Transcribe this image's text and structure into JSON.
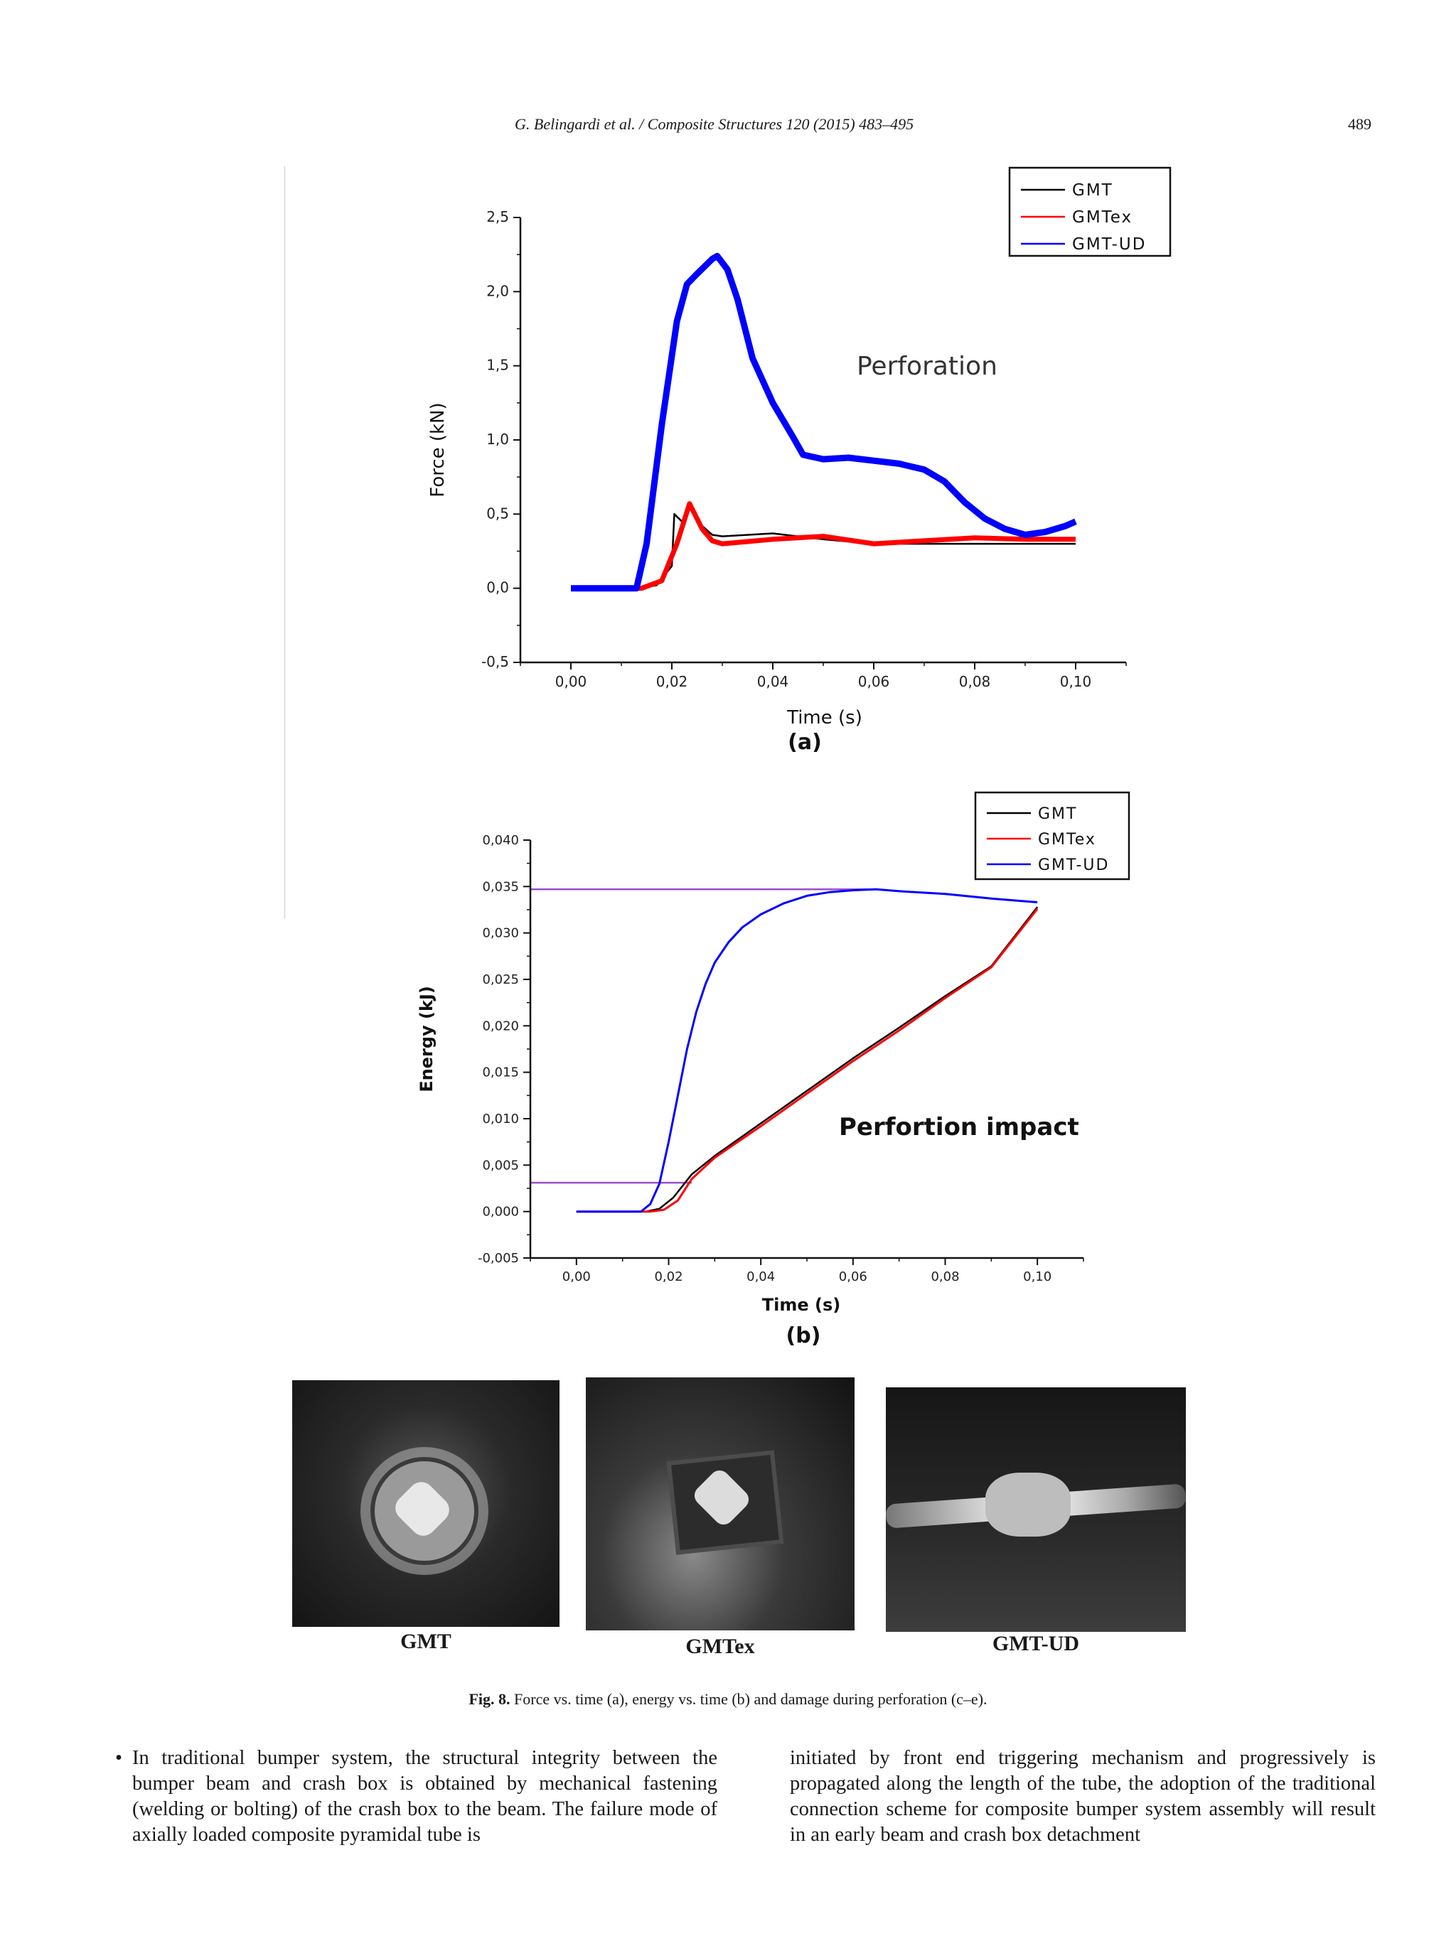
{
  "header": {
    "citation": "G. Belingardi et al. / Composite Structures 120 (2015) 483–495",
    "page_number": "489"
  },
  "chart_data": [
    {
      "type": "line",
      "panel": "(a)",
      "title": "Perforation",
      "xlabel": "Time (s)",
      "ylabel": "Force (kN)",
      "xlim": [
        -0.01,
        0.11
      ],
      "ylim": [
        -0.5,
        2.5
      ],
      "xticks": [
        "0,00",
        "0,02",
        "0,04",
        "0,06",
        "0,08",
        "0,10"
      ],
      "xtick_values": [
        0.0,
        0.02,
        0.04,
        0.06,
        0.08,
        0.1
      ],
      "yticks": [
        "-0,5",
        "0,0",
        "0,5",
        "1,0",
        "1,5",
        "2,0",
        "2,5"
      ],
      "ytick_values": [
        -0.5,
        0.0,
        0.5,
        1.0,
        1.5,
        2.0,
        2.5
      ],
      "legend": [
        "GMT",
        "GMTex",
        "GMT-UD"
      ],
      "legend_position": "top-right",
      "series": [
        {
          "name": "GMT",
          "color": "#000000",
          "x": [
            0.0,
            0.013,
            0.017,
            0.02,
            0.0205,
            0.022,
            0.0235,
            0.026,
            0.028,
            0.03,
            0.04,
            0.05,
            0.06,
            0.07,
            0.08,
            0.09,
            0.1
          ],
          "y": [
            0.0,
            0.0,
            0.02,
            0.15,
            0.5,
            0.45,
            0.55,
            0.42,
            0.36,
            0.35,
            0.37,
            0.33,
            0.3,
            0.3,
            0.3,
            0.3,
            0.3
          ]
        },
        {
          "name": "GMTex",
          "color": "#ff0000",
          "x": [
            0.0,
            0.014,
            0.018,
            0.021,
            0.0235,
            0.026,
            0.028,
            0.03,
            0.04,
            0.05,
            0.06,
            0.07,
            0.08,
            0.09,
            0.1
          ],
          "y": [
            0.0,
            0.0,
            0.05,
            0.3,
            0.57,
            0.4,
            0.32,
            0.3,
            0.33,
            0.35,
            0.3,
            0.32,
            0.34,
            0.33,
            0.33
          ]
        },
        {
          "name": "GMT-UD",
          "color": "#0000ff",
          "x": [
            0.0,
            0.013,
            0.015,
            0.018,
            0.021,
            0.023,
            0.025,
            0.028,
            0.029,
            0.031,
            0.033,
            0.036,
            0.04,
            0.044,
            0.046,
            0.05,
            0.055,
            0.06,
            0.065,
            0.07,
            0.074,
            0.078,
            0.082,
            0.086,
            0.09,
            0.094,
            0.098,
            0.1
          ],
          "y": [
            0.0,
            0.0,
            0.3,
            1.1,
            1.8,
            2.05,
            2.12,
            2.22,
            2.24,
            2.15,
            1.95,
            1.55,
            1.25,
            1.02,
            0.9,
            0.87,
            0.88,
            0.86,
            0.84,
            0.8,
            0.72,
            0.58,
            0.47,
            0.4,
            0.36,
            0.38,
            0.42,
            0.45
          ]
        }
      ]
    },
    {
      "type": "line",
      "panel": "(b)",
      "title": "Perfortion impact",
      "xlabel": "Time (s)",
      "ylabel": "Energy (kJ)",
      "xlim": [
        -0.01,
        0.11
      ],
      "ylim": [
        -0.005,
        0.04
      ],
      "xticks": [
        "0,00",
        "0,02",
        "0,04",
        "0,06",
        "0,08",
        "0,10"
      ],
      "xtick_values": [
        0.0,
        0.02,
        0.04,
        0.06,
        0.08,
        0.1
      ],
      "yticks": [
        "-0,005",
        "0,000",
        "0,005",
        "0,010",
        "0,015",
        "0,020",
        "0,025",
        "0,030",
        "0,035",
        "0,040"
      ],
      "ytick_values": [
        -0.005,
        0.0,
        0.005,
        0.01,
        0.015,
        0.02,
        0.025,
        0.03,
        0.035,
        0.04
      ],
      "legend": [
        "GMT",
        "GMTex",
        "GMT-UD"
      ],
      "legend_position": "top-right",
      "reference_lines": [
        {
          "y": 0.0347,
          "x_end": 0.065,
          "color": "#9b4fc9"
        },
        {
          "y": 0.0031,
          "x_end": 0.025,
          "color": "#9b4fc9"
        }
      ],
      "series": [
        {
          "name": "GMT",
          "color": "#000000",
          "x": [
            0.0,
            0.015,
            0.018,
            0.021,
            0.025,
            0.03,
            0.04,
            0.05,
            0.06,
            0.07,
            0.08,
            0.09,
            0.1
          ],
          "y": [
            0.0,
            0.0,
            0.0003,
            0.0015,
            0.004,
            0.006,
            0.0095,
            0.013,
            0.0165,
            0.0198,
            0.0232,
            0.0264,
            0.0328
          ]
        },
        {
          "name": "GMTex",
          "color": "#ff0000",
          "x": [
            0.0,
            0.016,
            0.019,
            0.022,
            0.025,
            0.03,
            0.04,
            0.05,
            0.06,
            0.07,
            0.08,
            0.09,
            0.1
          ],
          "y": [
            0.0,
            0.0,
            0.0002,
            0.0012,
            0.0035,
            0.0058,
            0.0092,
            0.0127,
            0.0162,
            0.0195,
            0.023,
            0.0263,
            0.0326
          ]
        },
        {
          "name": "GMT-UD",
          "color": "#0000ff",
          "x": [
            0.0,
            0.014,
            0.016,
            0.018,
            0.02,
            0.022,
            0.024,
            0.026,
            0.028,
            0.03,
            0.033,
            0.036,
            0.04,
            0.045,
            0.05,
            0.055,
            0.06,
            0.065,
            0.07,
            0.08,
            0.09,
            0.1
          ],
          "y": [
            0.0,
            0.0,
            0.0008,
            0.003,
            0.0075,
            0.0125,
            0.0175,
            0.0215,
            0.0245,
            0.0268,
            0.029,
            0.0306,
            0.032,
            0.0332,
            0.034,
            0.0344,
            0.0346,
            0.0347,
            0.0345,
            0.0342,
            0.0337,
            0.0333
          ]
        }
      ]
    }
  ],
  "photos": [
    {
      "label": "GMT"
    },
    {
      "label": "GMTex"
    },
    {
      "label": "GMT-UD"
    }
  ],
  "caption": {
    "prefix": "Fig. 8.",
    "text": "Force vs. time (a), energy vs. time (b) and damage during perforation (c–e)."
  },
  "body": {
    "left": "In traditional bumper system, the structural integrity between the bumper beam and crash box is obtained by mechanical fastening (welding or bolting) of the crash box to the beam. The failure mode of axially loaded composite pyramidal tube is",
    "right": "initiated by front end triggering mechanism and progressively is propagated along the length of the tube, the adoption of the traditional connection scheme for composite bumper system assembly will result in an early beam and crash box detachment"
  }
}
